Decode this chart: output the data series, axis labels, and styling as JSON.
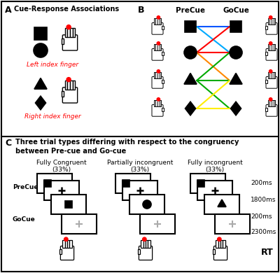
{
  "panel_A_label": "A",
  "panel_A_title": "Cue-Response Associations",
  "panel_B_label": "B",
  "panel_C_label": "C",
  "panel_C_title": "Three trial types differing with respect to the congruency\nbetween Pre-cue and Go-cue",
  "left_finger_label": "Left index finger",
  "right_finger_label": "Right index finger",
  "precue_label": "PreCue",
  "gocue_label": "GoCue",
  "col1_label": "Fully Congruent\n(33%)",
  "col2_label": "Partially incongruent\n(33%)",
  "col3_label": "Fully incongruent\n(33%)",
  "time_labels": [
    "200ms",
    "1800ms",
    "200ms",
    "2300ms"
  ],
  "precue_row_label": "PreCue",
  "gocue_row_label": "GoCue",
  "rt_label": "RT",
  "bg_color": "#ffffff",
  "red_dot_color": "#ff0000",
  "line_blue": "#0055ff",
  "line_red": "#ff0000",
  "line_green": "#00aa00",
  "line_yellow": "#ffee00",
  "line_orange": "#ff8800",
  "line_cyan": "#00aaff"
}
